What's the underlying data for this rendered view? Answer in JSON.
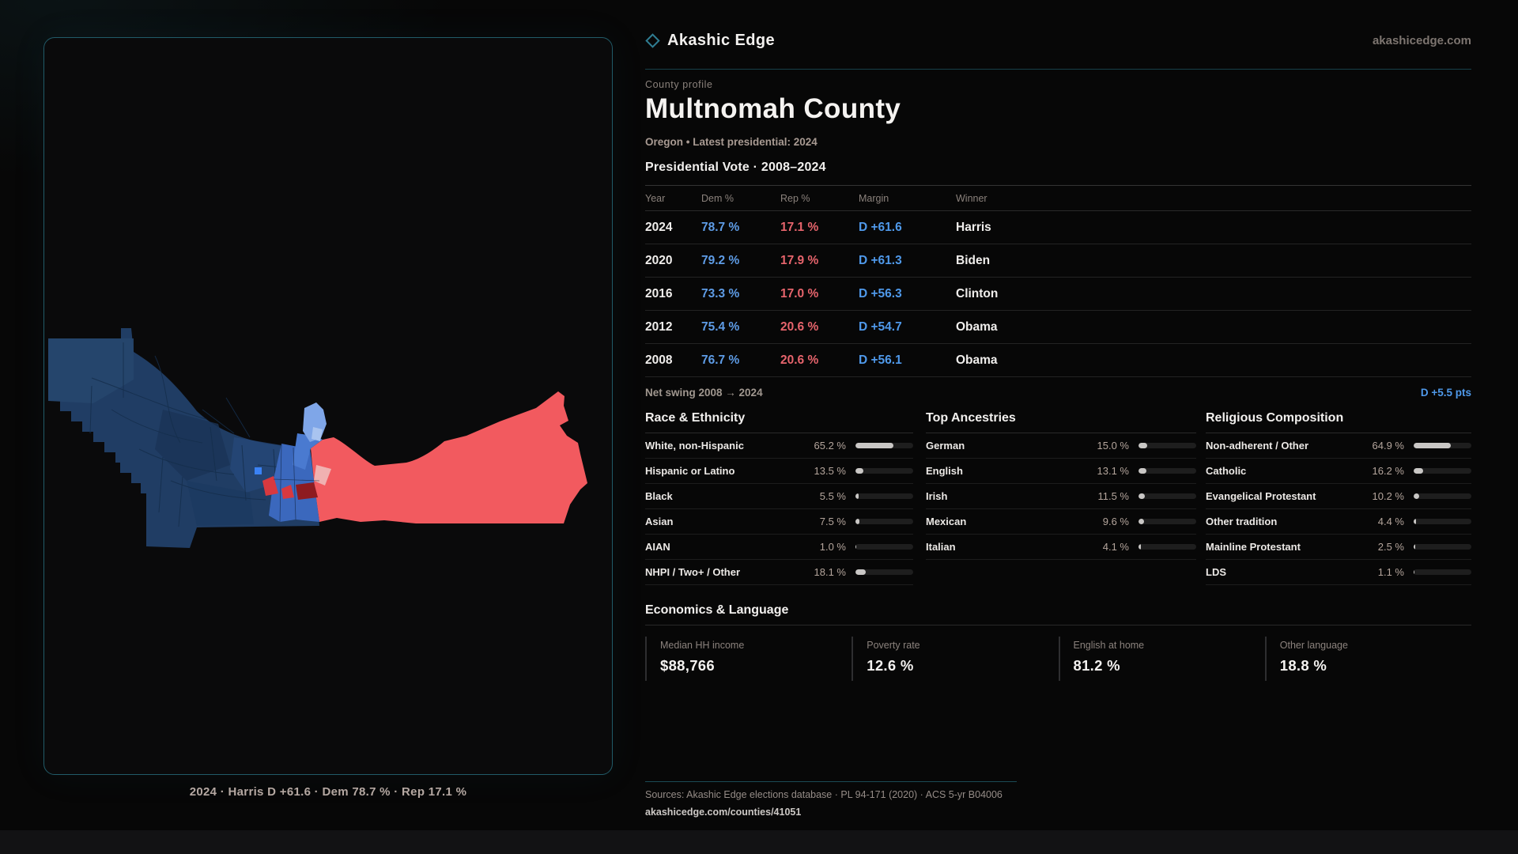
{
  "brand": {
    "name": "Akashic Edge",
    "domain": "akashicedge.com",
    "accent_teal": "#2f7d92"
  },
  "profile": {
    "eyebrow": "County profile",
    "title": "Multnomah County",
    "subtitle": "Oregon • Latest presidential: 2024"
  },
  "vote_table": {
    "title": "Presidential Vote · 2008–2024",
    "columns": [
      "Year",
      "Dem %",
      "Rep %",
      "Margin",
      "Winner"
    ],
    "rows": [
      {
        "year": "2024",
        "dem": "78.7 %",
        "rep": "17.1 %",
        "margin": "D +61.6",
        "winner": "Harris"
      },
      {
        "year": "2020",
        "dem": "79.2 %",
        "rep": "17.9 %",
        "margin": "D +61.3",
        "winner": "Biden"
      },
      {
        "year": "2016",
        "dem": "73.3 %",
        "rep": "17.0 %",
        "margin": "D +56.3",
        "winner": "Clinton"
      },
      {
        "year": "2012",
        "dem": "75.4 %",
        "rep": "20.6 %",
        "margin": "D +54.7",
        "winner": "Obama"
      },
      {
        "year": "2008",
        "dem": "76.7 %",
        "rep": "20.6 %",
        "margin": "D +56.1",
        "winner": "Obama"
      }
    ],
    "dem_color": "#5e9ce6",
    "rep_color": "#e6646c",
    "margin_color": "#4f99ea"
  },
  "net_swing": {
    "label": "Net swing 2008 → 2024",
    "value": "D +5.5 pts"
  },
  "demographics": {
    "race": {
      "title": "Race & Ethnicity",
      "rows": [
        {
          "label": "White, non-Hispanic",
          "value": "65.2 %",
          "pct": 65.2
        },
        {
          "label": "Hispanic or Latino",
          "value": "13.5 %",
          "pct": 13.5
        },
        {
          "label": "Black",
          "value": "5.5 %",
          "pct": 5.5
        },
        {
          "label": "Asian",
          "value": "7.5 %",
          "pct": 7.5
        },
        {
          "label": "AIAN",
          "value": "1.0 %",
          "pct": 1.0
        },
        {
          "label": "NHPI / Two+ / Other",
          "value": "18.1 %",
          "pct": 18.1
        }
      ]
    },
    "ancestries": {
      "title": "Top Ancestries",
      "rows": [
        {
          "label": "German",
          "value": "15.0 %",
          "pct": 15.0
        },
        {
          "label": "English",
          "value": "13.1 %",
          "pct": 13.1
        },
        {
          "label": "Irish",
          "value": "11.5 %",
          "pct": 11.5
        },
        {
          "label": "Mexican",
          "value": "9.6 %",
          "pct": 9.6
        },
        {
          "label": "Italian",
          "value": "4.1 %",
          "pct": 4.1
        }
      ]
    },
    "religion": {
      "title": "Religious Composition",
      "rows": [
        {
          "label": "Non-adherent / Other",
          "value": "64.9 %",
          "pct": 64.9
        },
        {
          "label": "Catholic",
          "value": "16.2 %",
          "pct": 16.2
        },
        {
          "label": "Evangelical Protestant",
          "value": "10.2 %",
          "pct": 10.2
        },
        {
          "label": "Other tradition",
          "value": "4.4 %",
          "pct": 4.4
        },
        {
          "label": "Mainline Protestant",
          "value": "2.5 %",
          "pct": 2.5
        },
        {
          "label": "LDS",
          "value": "1.1 %",
          "pct": 1.1
        }
      ]
    }
  },
  "economics": {
    "title": "Economics & Language",
    "stats": [
      {
        "label": "Median HH income",
        "value": "$88,766"
      },
      {
        "label": "Poverty rate",
        "value": "12.6 %"
      },
      {
        "label": "English at home",
        "value": "81.2 %"
      },
      {
        "label": "Other language",
        "value": "18.8 %"
      }
    ]
  },
  "map": {
    "caption": "2024 · Harris D +61.6 · Dem 78.7 % · Rep 17.1 %",
    "dem_fill": "#203d64",
    "rep_fill": "#f25a5f"
  },
  "footer": {
    "sources": "Sources: Akashic Edge elections database · PL 94-171 (2020) · ACS 5-yr B04006",
    "link": "akashicedge.com/counties/41051"
  }
}
